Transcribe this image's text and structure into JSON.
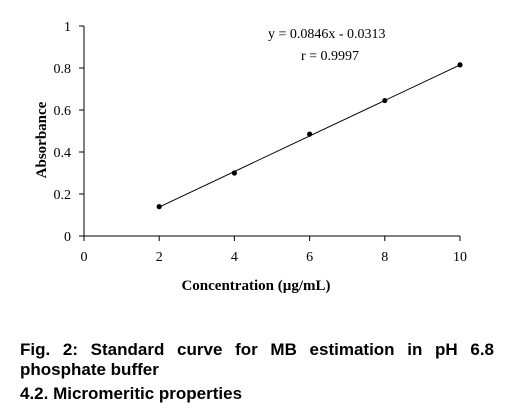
{
  "chart_data": {
    "type": "scatter",
    "title": "",
    "xlabel": "Concentration  (µg/mL)",
    "ylabel": "Absorbance",
    "xlim": [
      0,
      10
    ],
    "ylim": [
      0,
      1
    ],
    "x_ticks": [
      "0",
      "2",
      "4",
      "6",
      "8",
      "10"
    ],
    "y_ticks": [
      "0",
      "0.2",
      "0.4",
      "0.6",
      "0.8",
      "1"
    ],
    "series": [
      {
        "x": [
          2,
          4,
          6,
          8,
          10
        ],
        "y": [
          0.14,
          0.3,
          0.485,
          0.645,
          0.815
        ],
        "marker_color": "#000000"
      }
    ],
    "trendline": {
      "slope": 0.0846,
      "intercept": -0.0313,
      "x_range": [
        2,
        10
      ],
      "color": "#000000"
    },
    "annotations": [
      "y = 0.0846x - 0.0313",
      "r = 0.9997"
    ],
    "grid": false,
    "legend": "none"
  },
  "caption": {
    "figure": "Fig. 2: Standard curve for MB estimation in pH 6.8 phosphate buffer",
    "section": "4.2. Micromeritic properties"
  }
}
